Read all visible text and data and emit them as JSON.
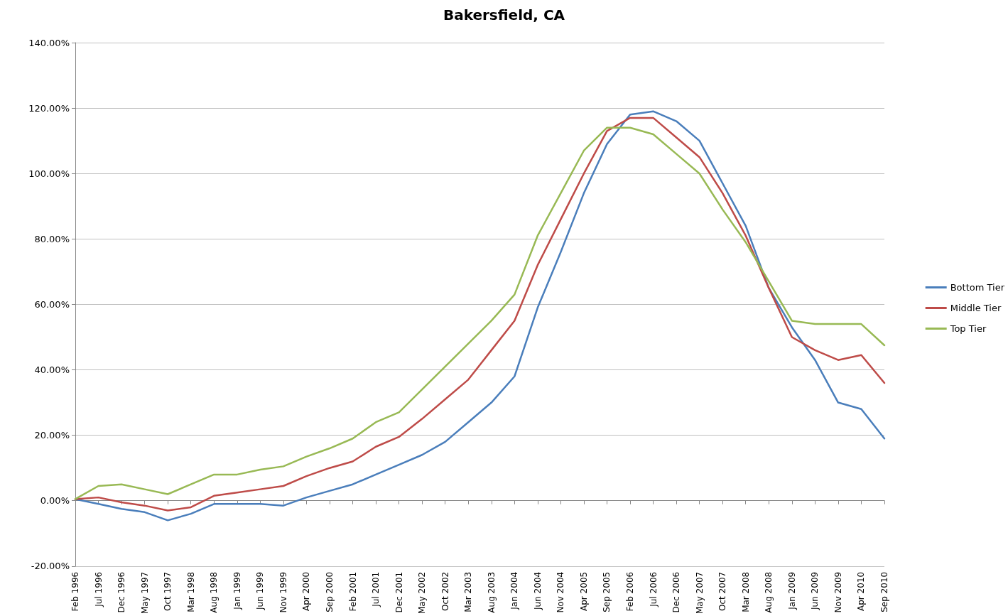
{
  "chart_data": {
    "type": "line",
    "title": "Bakersfield, CA",
    "categories": [
      "Feb 1996",
      "Jul 1996",
      "Dec 1996",
      "May 1997",
      "Oct 1997",
      "Mar 1998",
      "Aug 1998",
      "Jan 1999",
      "Jun 1999",
      "Nov 1999",
      "Apr 2000",
      "Sep 2000",
      "Feb 2001",
      "Jul 2001",
      "Dec 2001",
      "May 2002",
      "Oct 2002",
      "Mar 2003",
      "Aug 2003",
      "Jan 2004",
      "Jun 2004",
      "Nov 2004",
      "Apr 2005",
      "Sep 2005",
      "Feb 2006",
      "Jul 2006",
      "Dec 2006",
      "May 2007",
      "Oct 2007",
      "Mar 2008",
      "Aug 2008",
      "Jan 2009",
      "Jun 2009",
      "Nov 2009",
      "Apr 2010",
      "Sep 2010"
    ],
    "series": [
      {
        "name": "Bottom Tier",
        "color": "#4a7ebb",
        "values": [
          0.5,
          -1,
          -2.5,
          -3.5,
          -6,
          -4,
          -1,
          -1,
          -1,
          -1.5,
          1,
          3,
          5,
          8,
          11,
          14,
          18,
          24,
          30,
          38,
          59,
          76,
          94,
          109,
          118,
          119,
          116,
          110,
          97,
          84,
          65,
          53,
          43,
          30,
          28,
          19
        ]
      },
      {
        "name": "Middle Tier",
        "color": "#be4b48",
        "values": [
          0.5,
          1,
          -0.5,
          -1.5,
          -3,
          -2,
          1.5,
          2.5,
          3.5,
          4.5,
          7.5,
          10,
          12,
          16.5,
          19.5,
          25,
          31,
          37,
          46,
          55,
          72,
          86,
          100,
          113,
          117,
          117,
          111,
          105,
          94,
          81,
          65,
          50,
          46,
          43,
          44.5,
          36
        ]
      },
      {
        "name": "Top Tier",
        "color": "#98b954",
        "values": [
          0.5,
          4.5,
          5,
          3.5,
          2,
          5,
          8,
          8,
          9.5,
          10.5,
          13.5,
          16,
          19,
          24,
          27,
          34,
          41,
          48,
          55,
          63,
          81,
          94,
          107,
          114,
          114,
          112,
          106,
          100,
          89,
          79,
          67,
          55,
          54,
          54,
          54,
          47.5
        ]
      }
    ],
    "ylim": [
      -20,
      140
    ],
    "yticks": [
      {
        "value": -20,
        "label": "-20.00%"
      },
      {
        "value": 0,
        "label": "0.00%"
      },
      {
        "value": 20,
        "label": "20.00%"
      },
      {
        "value": 40,
        "label": "40.00%"
      },
      {
        "value": 60,
        "label": "60.00%"
      },
      {
        "value": 80,
        "label": "80.00%"
      },
      {
        "value": 100,
        "label": "100.00%"
      },
      {
        "value": 120,
        "label": "120.00%"
      },
      {
        "value": 140,
        "label": "140.00%"
      }
    ],
    "grid": "y",
    "legend": "right",
    "marker": "none",
    "line_style": "solid"
  }
}
